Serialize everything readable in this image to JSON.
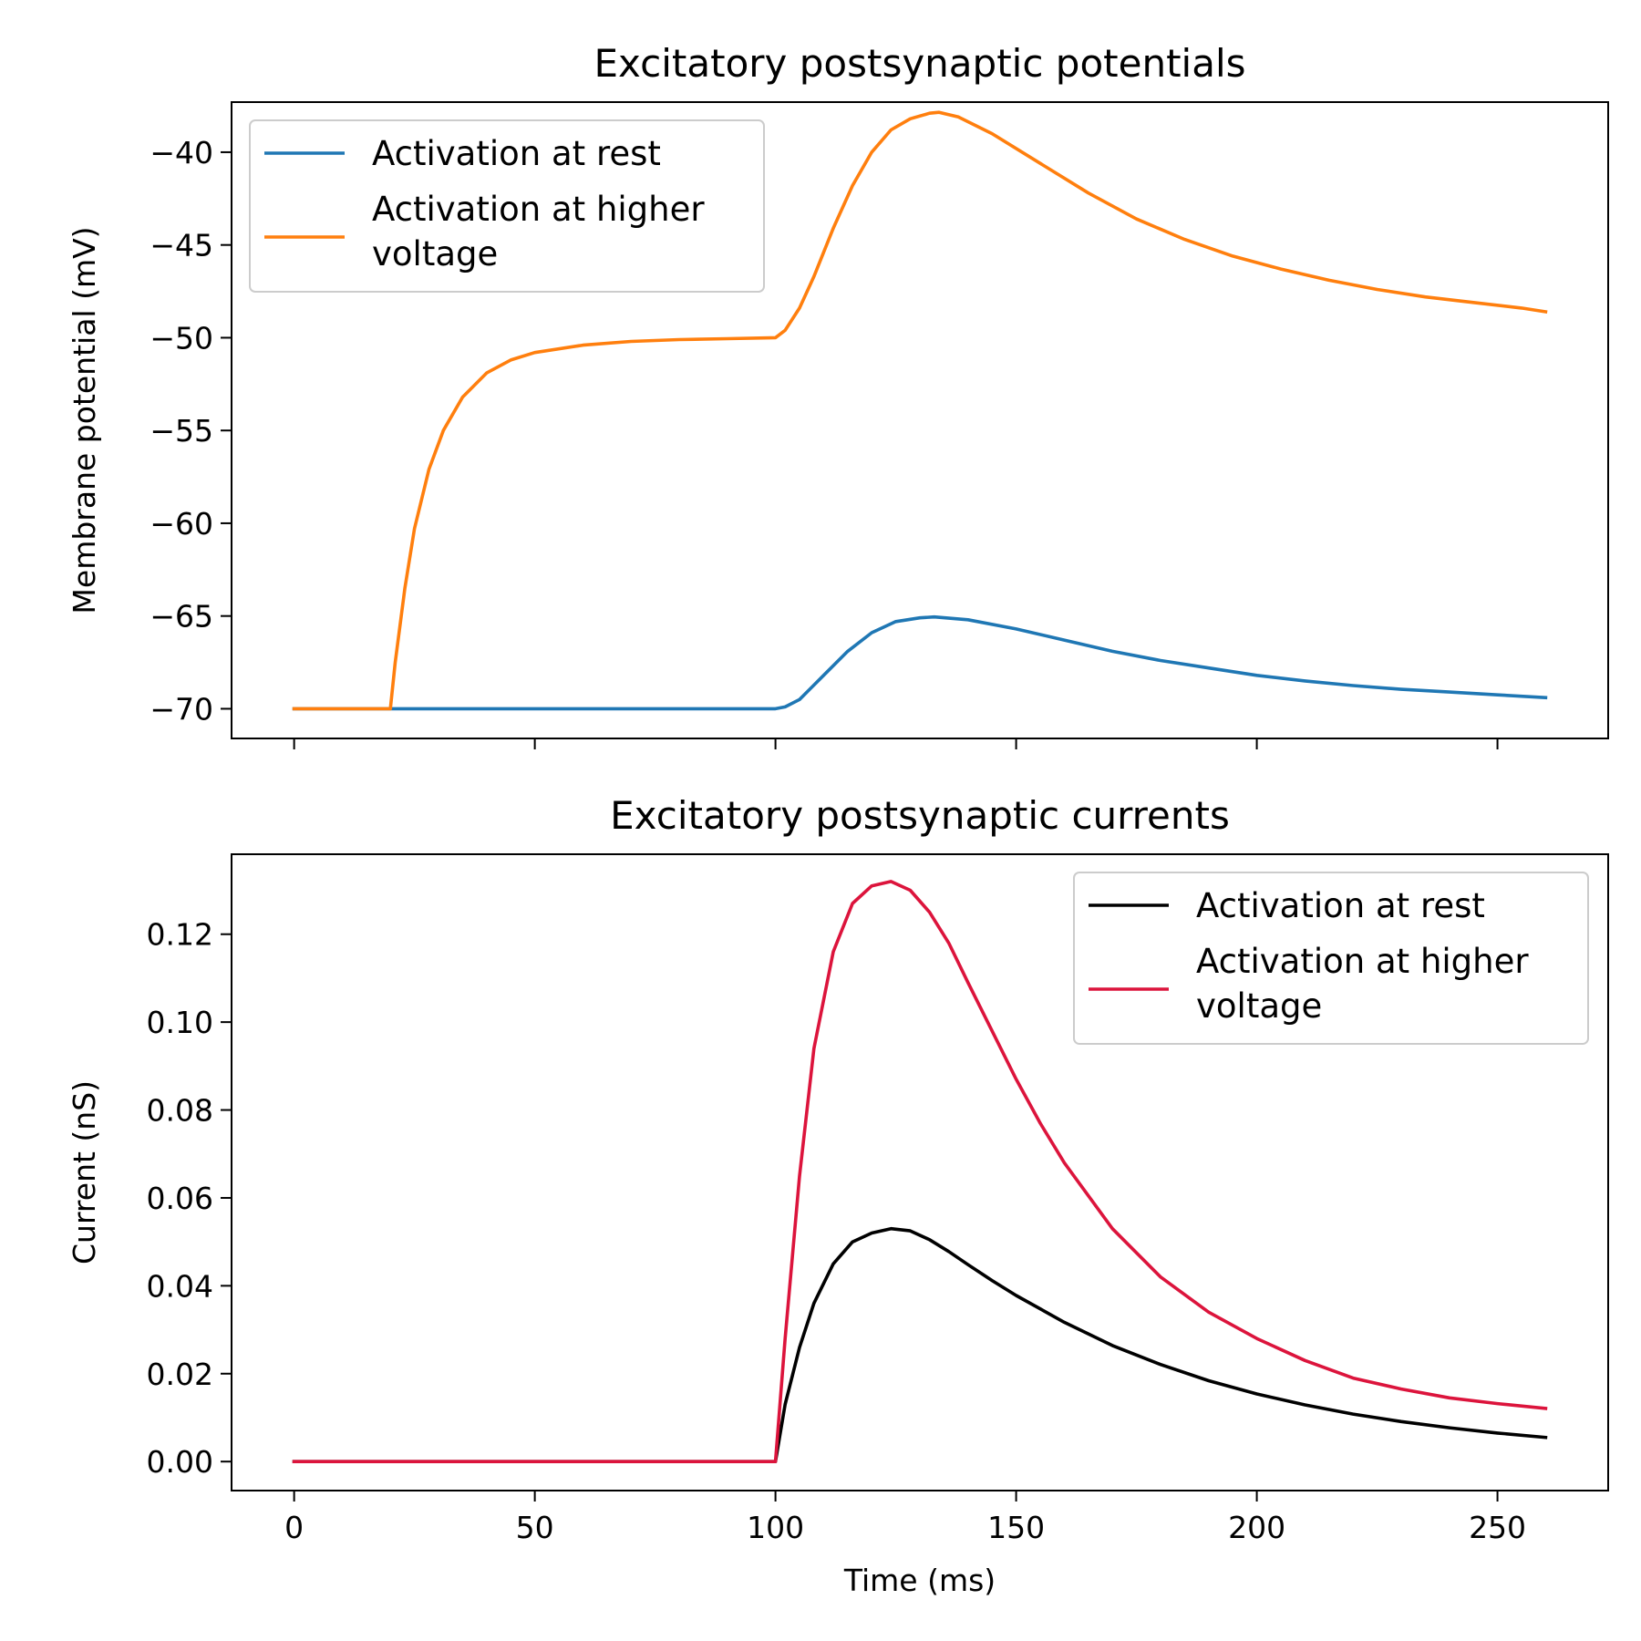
{
  "chart_data": [
    {
      "type": "line",
      "title": "Excitatory postsynaptic potentials",
      "xlabel": "",
      "ylabel": "Membrane potential (mV)",
      "xlim": [
        -13,
        273
      ],
      "ylim": [
        -71.6,
        -37.3
      ],
      "xticks": [
        0,
        50,
        100,
        150,
        200,
        250
      ],
      "xtick_labels_visible": false,
      "yticks": [
        -40,
        -45,
        -50,
        -55,
        -60,
        -65,
        -70
      ],
      "ytick_labels": [
        "−40",
        "−45",
        "−50",
        "−55",
        "−60",
        "−65",
        "−70"
      ],
      "grid": false,
      "legend": {
        "location": "top-left",
        "entries": [
          {
            "label": "Activation at rest",
            "color": "#1f77b4"
          },
          {
            "label": "Activation at higher voltage",
            "lines": [
              "Activation at higher",
              "voltage"
            ],
            "color": "#ff7f0e"
          }
        ]
      },
      "series": [
        {
          "name": "Activation at rest",
          "color": "#1f77b4",
          "x": [
            0,
            20,
            50,
            100,
            102,
            105,
            110,
            115,
            120,
            125,
            130,
            133,
            140,
            150,
            160,
            170,
            180,
            190,
            200,
            210,
            220,
            230,
            240,
            250,
            260
          ],
          "y": [
            -70,
            -70,
            -70,
            -70,
            -69.9,
            -69.5,
            -68.2,
            -66.9,
            -65.9,
            -65.3,
            -65.1,
            -65.05,
            -65.2,
            -65.7,
            -66.3,
            -66.9,
            -67.4,
            -67.8,
            -68.2,
            -68.5,
            -68.75,
            -68.95,
            -69.1,
            -69.25,
            -69.4
          ]
        },
        {
          "name": "Activation at higher voltage",
          "color": "#ff7f0e",
          "x": [
            0,
            20,
            21,
            23,
            25,
            28,
            31,
            35,
            40,
            45,
            50,
            60,
            70,
            80,
            90,
            100,
            102,
            105,
            108,
            112,
            116,
            120,
            124,
            128,
            132,
            134,
            138,
            145,
            155,
            165,
            175,
            185,
            195,
            205,
            215,
            225,
            235,
            245,
            255,
            260
          ],
          "y": [
            -70,
            -70,
            -67.5,
            -63.5,
            -60.3,
            -57.1,
            -55.0,
            -53.2,
            -51.9,
            -51.2,
            -50.8,
            -50.4,
            -50.2,
            -50.1,
            -50.05,
            -50.0,
            -49.6,
            -48.4,
            -46.7,
            -44.1,
            -41.8,
            -40.0,
            -38.8,
            -38.2,
            -37.9,
            -37.85,
            -38.1,
            -39.0,
            -40.6,
            -42.2,
            -43.6,
            -44.7,
            -45.6,
            -46.3,
            -46.9,
            -47.4,
            -47.8,
            -48.1,
            -48.4,
            -48.6
          ]
        }
      ]
    },
    {
      "type": "line",
      "title": "Excitatory postsynaptic currents",
      "xlabel": "Time (ms)",
      "ylabel": "Current (nS)",
      "xlim": [
        -13,
        273
      ],
      "ylim": [
        -0.0066,
        0.1382
      ],
      "xticks": [
        0,
        50,
        100,
        150,
        200,
        250
      ],
      "xtick_labels": [
        "0",
        "50",
        "100",
        "150",
        "200",
        "250"
      ],
      "yticks": [
        0,
        0.02,
        0.04,
        0.06,
        0.08,
        0.1,
        0.12
      ],
      "ytick_labels": [
        "0.00",
        "0.02",
        "0.04",
        "0.06",
        "0.08",
        "0.10",
        "0.12"
      ],
      "grid": false,
      "legend": {
        "location": "top-right",
        "entries": [
          {
            "label": "Activation at rest",
            "color": "#000000"
          },
          {
            "label": "Activation at higher voltage",
            "lines": [
              "Activation at higher",
              "voltage"
            ],
            "color": "#dc143c"
          }
        ]
      },
      "series": [
        {
          "name": "Activation at rest",
          "color": "#000000",
          "x": [
            0,
            50,
            100,
            102,
            105,
            108,
            112,
            116,
            120,
            124,
            128,
            132,
            136,
            140,
            145,
            150,
            160,
            170,
            180,
            190,
            200,
            210,
            220,
            230,
            240,
            250,
            260
          ],
          "y": [
            0,
            0,
            0,
            0.013,
            0.026,
            0.036,
            0.045,
            0.05,
            0.052,
            0.053,
            0.0525,
            0.0505,
            0.0478,
            0.0448,
            0.0412,
            0.0378,
            0.0317,
            0.0264,
            0.0221,
            0.0184,
            0.0154,
            0.0129,
            0.0108,
            0.0091,
            0.0077,
            0.0065,
            0.0055
          ]
        },
        {
          "name": "Activation at higher voltage",
          "color": "#dc143c",
          "x": [
            0,
            50,
            100,
            102,
            105,
            108,
            112,
            116,
            120,
            124,
            128,
            132,
            136,
            140,
            145,
            150,
            155,
            160,
            170,
            180,
            190,
            200,
            210,
            220,
            230,
            240,
            250,
            260
          ],
          "y": [
            0,
            0,
            0,
            0.028,
            0.065,
            0.094,
            0.116,
            0.127,
            0.131,
            0.132,
            0.13,
            0.125,
            0.118,
            0.109,
            0.098,
            0.087,
            0.077,
            0.068,
            0.053,
            0.042,
            0.034,
            0.028,
            0.023,
            0.019,
            0.0165,
            0.0145,
            0.0132,
            0.0121
          ]
        }
      ]
    }
  ]
}
